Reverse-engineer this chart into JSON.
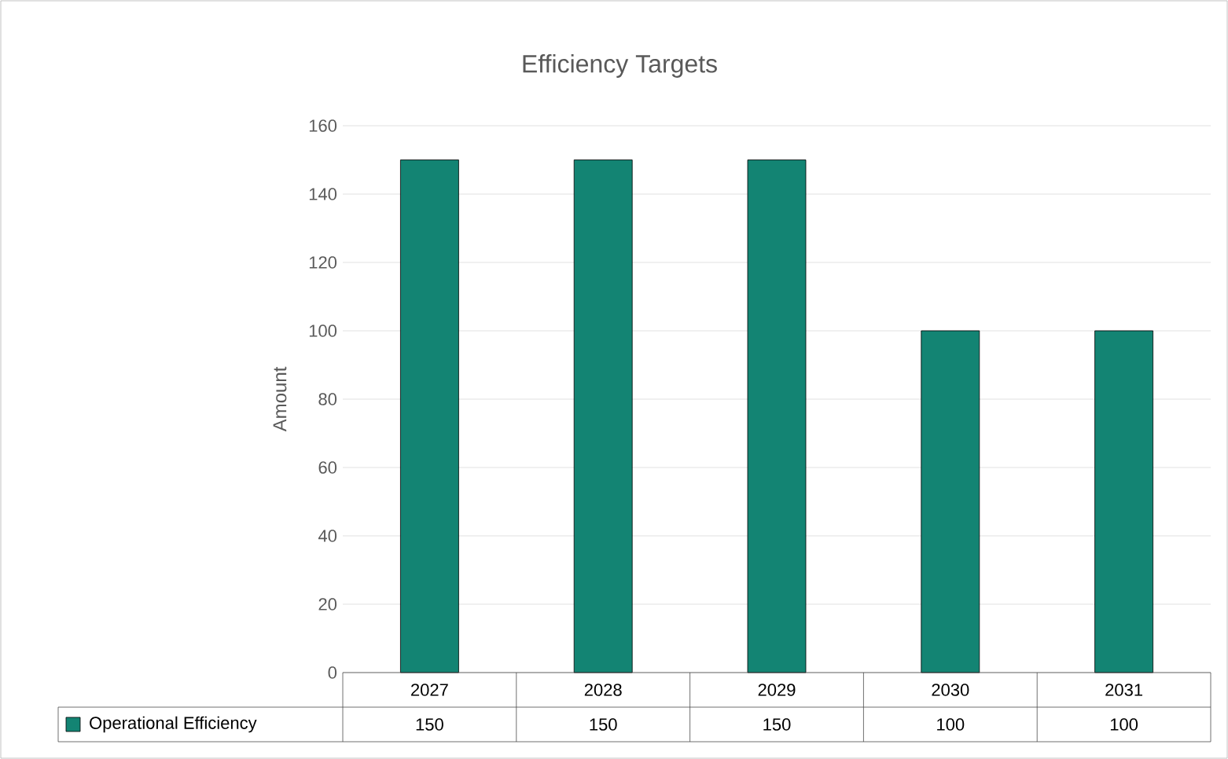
{
  "chart_data": {
    "type": "bar",
    "title": "Efficiency Targets",
    "ylabel": "Amount",
    "categories": [
      "2027",
      "2028",
      "2029",
      "2030",
      "2031"
    ],
    "series": [
      {
        "name": "Operational Efficiency",
        "color": "#138473",
        "values": [
          150,
          150,
          150,
          100,
          100
        ]
      }
    ],
    "ylim": [
      0,
      160
    ],
    "yticks": [
      0,
      20,
      40,
      60,
      80,
      100,
      120,
      140,
      160
    ],
    "grid": "y",
    "legend": "bottom",
    "data_labels": true
  }
}
